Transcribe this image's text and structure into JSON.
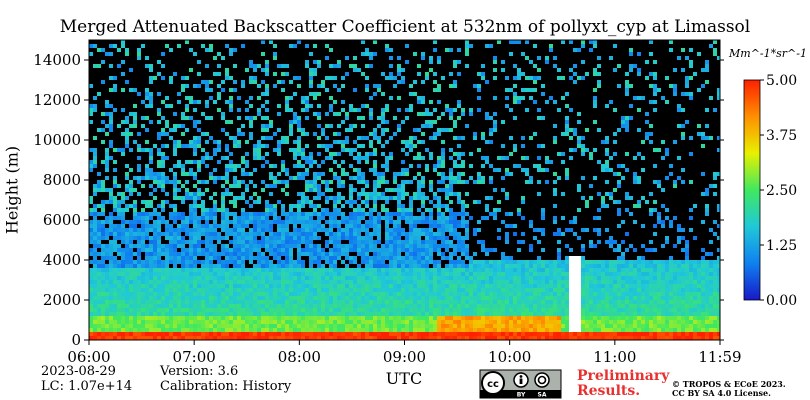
{
  "chart_data": {
    "type": "heatmap",
    "title": "Merged Attenuated Backscatter Coefficient at 532nm of pollyxt_cyp at Limassol",
    "xlabel": "UTC",
    "ylabel": "Height (m)",
    "x_ticks": [
      "06:00",
      "07:00",
      "08:00",
      "09:00",
      "10:00",
      "11:00",
      "11:59"
    ],
    "y_ticks": [
      0,
      2000,
      4000,
      6000,
      8000,
      10000,
      12000,
      14000
    ],
    "ylim": [
      0,
      15000
    ],
    "colorbar": {
      "unit": "Mm^-1*sr^-1",
      "ticks": [
        "0.00",
        "1.25",
        "2.50",
        "3.75",
        "5.00"
      ],
      "range": [
        0,
        5
      ],
      "colormap": [
        "#1818c8",
        "#1080f0",
        "#20c8d8",
        "#40e860",
        "#e8f000",
        "#ff9000",
        "#ff2000"
      ]
    }
  },
  "meta": {
    "date": "2023-08-29",
    "version": "Version: 3.6",
    "lc": "LC: 1.07e+14",
    "calibration": "Calibration: History",
    "preliminary": "Preliminary\nResults.",
    "copyright": "© TROPOS & ECoE 2023.\nCC BY SA 4.0 License.",
    "license_icons": [
      "cc-icon",
      "by-icon",
      "sa-icon"
    ],
    "license_labels": [
      "BY",
      "SA"
    ]
  }
}
